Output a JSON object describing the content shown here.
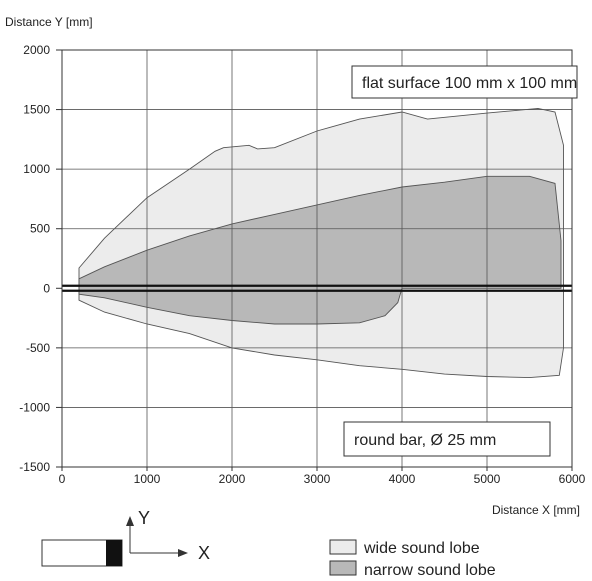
{
  "chart_data": {
    "type": "area",
    "xlabel": "Distance X [mm]",
    "ylabel": "Distance Y [mm]",
    "xlim": [
      0,
      6000
    ],
    "ylim": [
      -1500,
      2000
    ],
    "xticks": [
      0,
      1000,
      2000,
      3000,
      4000,
      5000,
      6000
    ],
    "yticks": [
      2000,
      1500,
      1000,
      500,
      0,
      -500,
      -1000,
      -1500
    ],
    "grid": true,
    "annotations": [
      "flat surface 100 mm x 100 mm",
      "round bar, Ø 25 mm"
    ],
    "series": [
      {
        "name": "wide sound lobe",
        "color": "#ececec",
        "upper": [
          [
            200,
            170
          ],
          [
            500,
            420
          ],
          [
            1000,
            760
          ],
          [
            1500,
            1000
          ],
          [
            1800,
            1150
          ],
          [
            1900,
            1180
          ],
          [
            2200,
            1200
          ],
          [
            2300,
            1170
          ],
          [
            2500,
            1180
          ],
          [
            3000,
            1320
          ],
          [
            3500,
            1420
          ],
          [
            4000,
            1480
          ],
          [
            4300,
            1420
          ],
          [
            5000,
            1470
          ],
          [
            5600,
            1510
          ],
          [
            5800,
            1480
          ],
          [
            5900,
            1200
          ],
          [
            5900,
            200
          ],
          [
            5900,
            0
          ]
        ],
        "lower": [
          [
            200,
            -100
          ],
          [
            500,
            -200
          ],
          [
            1000,
            -300
          ],
          [
            1500,
            -380
          ],
          [
            2000,
            -500
          ],
          [
            2500,
            -560
          ],
          [
            3000,
            -600
          ],
          [
            3500,
            -650
          ],
          [
            4000,
            -680
          ],
          [
            4500,
            -720
          ],
          [
            5000,
            -740
          ],
          [
            5500,
            -750
          ],
          [
            5850,
            -730
          ],
          [
            5900,
            -500
          ],
          [
            5900,
            0
          ]
        ]
      },
      {
        "name": "narrow sound lobe",
        "color": "#b8b8b8",
        "upper": [
          [
            200,
            80
          ],
          [
            500,
            180
          ],
          [
            1000,
            320
          ],
          [
            1500,
            440
          ],
          [
            2000,
            540
          ],
          [
            2500,
            620
          ],
          [
            3000,
            700
          ],
          [
            3500,
            780
          ],
          [
            4000,
            850
          ],
          [
            4500,
            890
          ],
          [
            5000,
            940
          ],
          [
            5500,
            940
          ],
          [
            5800,
            880
          ],
          [
            5870,
            400
          ],
          [
            5870,
            0
          ]
        ],
        "lower": [
          [
            200,
            -50
          ],
          [
            500,
            -80
          ],
          [
            1000,
            -160
          ],
          [
            1500,
            -230
          ],
          [
            2000,
            -270
          ],
          [
            2500,
            -300
          ],
          [
            3000,
            -300
          ],
          [
            3500,
            -290
          ],
          [
            3800,
            -230
          ],
          [
            3950,
            -120
          ],
          [
            4000,
            0
          ]
        ]
      }
    ],
    "legend_position": "bottom-right"
  },
  "diagram": {
    "y_label": "Y",
    "x_label": "X"
  }
}
